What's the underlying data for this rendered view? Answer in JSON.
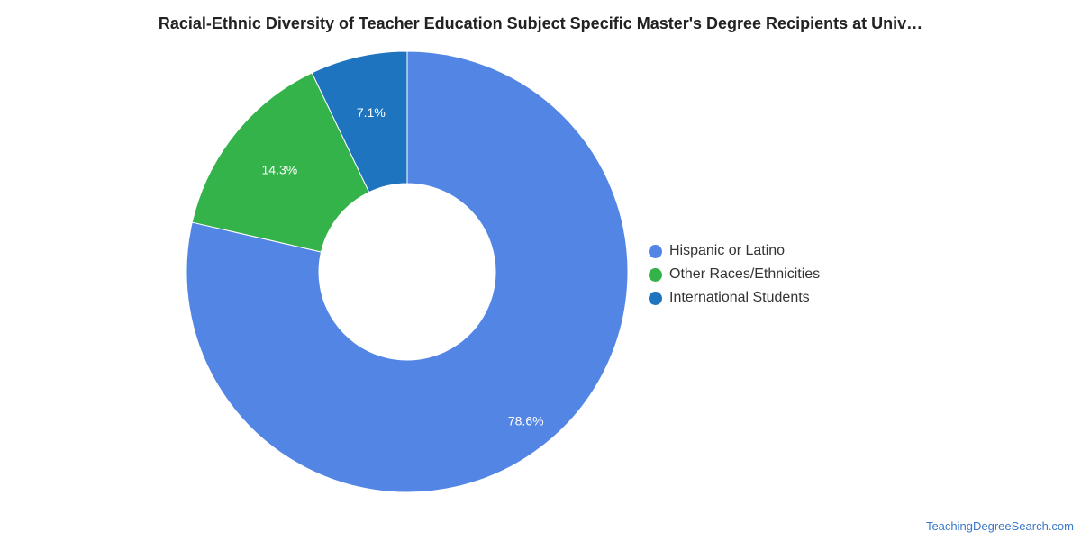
{
  "chart_data": {
    "type": "pie",
    "title": "Racial-Ethnic Diversity of Teacher Education Subject Specific Master's Degree Recipients at Univ…",
    "donut": true,
    "categories": [
      "Hispanic or Latino",
      "Other Races/Ethnicities",
      "International Students"
    ],
    "values": [
      78.6,
      14.3,
      7.1
    ],
    "labels": [
      "78.6%",
      "14.3%",
      "7.1%"
    ],
    "colors": [
      "#5386e4",
      "#34b34a",
      "#1f74bf"
    ],
    "legend_position": "right"
  },
  "credit": "TeachingDegreeSearch.com"
}
